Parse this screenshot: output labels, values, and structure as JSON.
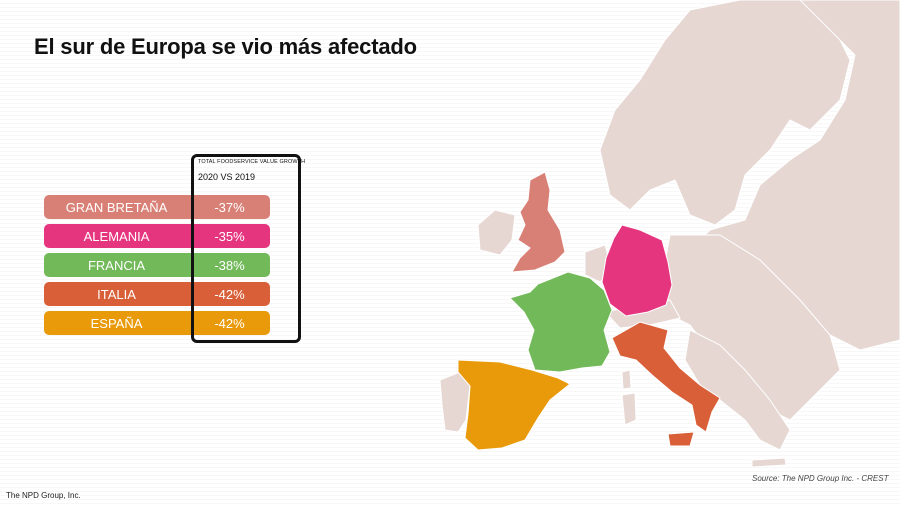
{
  "title": "El sur de Europa se vio más afectado",
  "table": {
    "header": "TOTAL FOODSERVICE VALUE GROWTH",
    "period": "2020 VS 2019",
    "rows": [
      {
        "country": "GRAN BRETAÑA",
        "value": "-37%",
        "color": "#d98076"
      },
      {
        "country": "ALEMANIA",
        "value": "-35%",
        "color": "#e6357f"
      },
      {
        "country": "FRANCIA",
        "value": "-38%",
        "color": "#72b95a"
      },
      {
        "country": "ITALIA",
        "value": "-42%",
        "color": "#d95f38"
      },
      {
        "country": "ESPAÑA",
        "value": "-42%",
        "color": "#e89a0a"
      }
    ]
  },
  "map": {
    "base_color": "#e6d7d3",
    "highlight": {
      "great_britain": "#d98076",
      "germany": "#e6357f",
      "france": "#72b95a",
      "italy": "#d95f38",
      "spain": "#e89a0a"
    }
  },
  "source": "Source: The NPD Group Inc. - CREST",
  "credit": "The NPD Group, Inc."
}
